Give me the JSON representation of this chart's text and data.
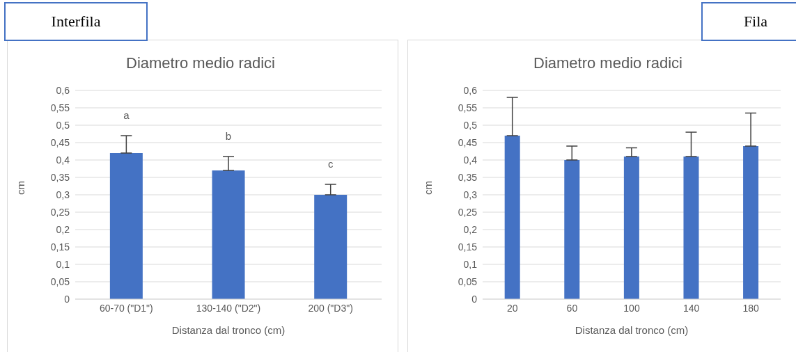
{
  "chart_data": [
    {
      "type": "bar",
      "title": "Diametro medio radici",
      "xlabel": "Distanza dal tronco (cm)",
      "ylabel": "cm",
      "categories": [
        "60-70 (\"D1\")",
        "130-140 (\"D2\")",
        "200 (\"D3\")"
      ],
      "values": [
        0.42,
        0.37,
        0.3
      ],
      "errors": [
        [
          0.42,
          0.47
        ],
        [
          0.37,
          0.41
        ],
        [
          0.3,
          0.33
        ]
      ],
      "color": "#4472c4",
      "ylim": [
        0,
        0.6
      ],
      "yticks": [
        0,
        {
          "value": 0.05,
          "label": "0,05"
        },
        {
          "value": 0.1,
          "label": "0,1"
        },
        {
          "value": 0.15,
          "label": "0,15"
        },
        {
          "value": 0.2,
          "label": "0,2"
        },
        {
          "value": 0.25,
          "label": "0,25"
        },
        {
          "value": 0.3,
          "label": "0,3"
        },
        {
          "value": 0.35,
          "label": "0,35"
        },
        {
          "value": 0.4,
          "label": "0,4"
        },
        {
          "value": 0.45,
          "label": "0,45"
        },
        {
          "value": 0.5,
          "label": "0,5"
        },
        {
          "value": 0.55,
          "label": "0,55"
        },
        {
          "value": 0.6,
          "label": "0,6"
        }
      ],
      "grid": "y",
      "legend": false,
      "annotations": [
        "Interfila",
        "a",
        "b",
        "c"
      ]
    },
    {
      "type": "bar",
      "title": "Diametro medio radici",
      "xlabel": "Distanza dal tronco (cm)",
      "ylabel": "cm",
      "categories": [
        "20",
        "60",
        "100",
        "140",
        "180"
      ],
      "values": [
        0.47,
        0.4,
        0.41,
        0.41,
        0.44
      ],
      "errors": [
        [
          0.47,
          0.58
        ],
        [
          0.4,
          0.44
        ],
        [
          0.41,
          0.435
        ],
        [
          0.41,
          0.48
        ],
        [
          0.44,
          0.535
        ]
      ],
      "color": "#4472c4",
      "ylim": [
        0,
        0.6
      ],
      "yticks": [
        0,
        {
          "value": 0.05,
          "label": "0,05"
        },
        {
          "value": 0.1,
          "label": "0,1"
        },
        {
          "value": 0.15,
          "label": "0,15"
        },
        {
          "value": 0.2,
          "label": "0,2"
        },
        {
          "value": 0.25,
          "label": "0,25"
        },
        {
          "value": 0.3,
          "label": "0,3"
        },
        {
          "value": 0.35,
          "label": "0,35"
        },
        {
          "value": 0.4,
          "label": "0,4"
        },
        {
          "value": 0.45,
          "label": "0,45"
        },
        {
          "value": 0.5,
          "label": "0,5"
        },
        {
          "value": 0.55,
          "label": "0,55"
        },
        {
          "value": 0.6,
          "label": "0,6"
        }
      ],
      "grid": "y",
      "legend": false,
      "annotations": [
        "Fila"
      ]
    }
  ]
}
